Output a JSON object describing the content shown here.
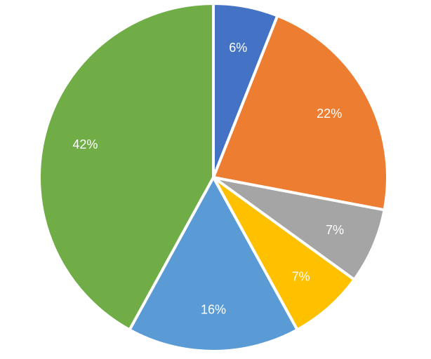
{
  "chart_data": {
    "type": "pie",
    "title": "",
    "slices": [
      {
        "label": "6%",
        "value": 6,
        "color": "#4472c4"
      },
      {
        "label": "22%",
        "value": 22,
        "color": "#ed7d31"
      },
      {
        "label": "7%",
        "value": 7,
        "color": "#a5a5a5"
      },
      {
        "label": "7%",
        "value": 7,
        "color": "#ffc000"
      },
      {
        "label": "16%",
        "value": 16,
        "color": "#5b9bd5"
      },
      {
        "label": "42%",
        "value": 42,
        "color": "#70ad47"
      }
    ],
    "start_angle": "12 o'clock",
    "direction": "clockwise",
    "legend": "none"
  }
}
